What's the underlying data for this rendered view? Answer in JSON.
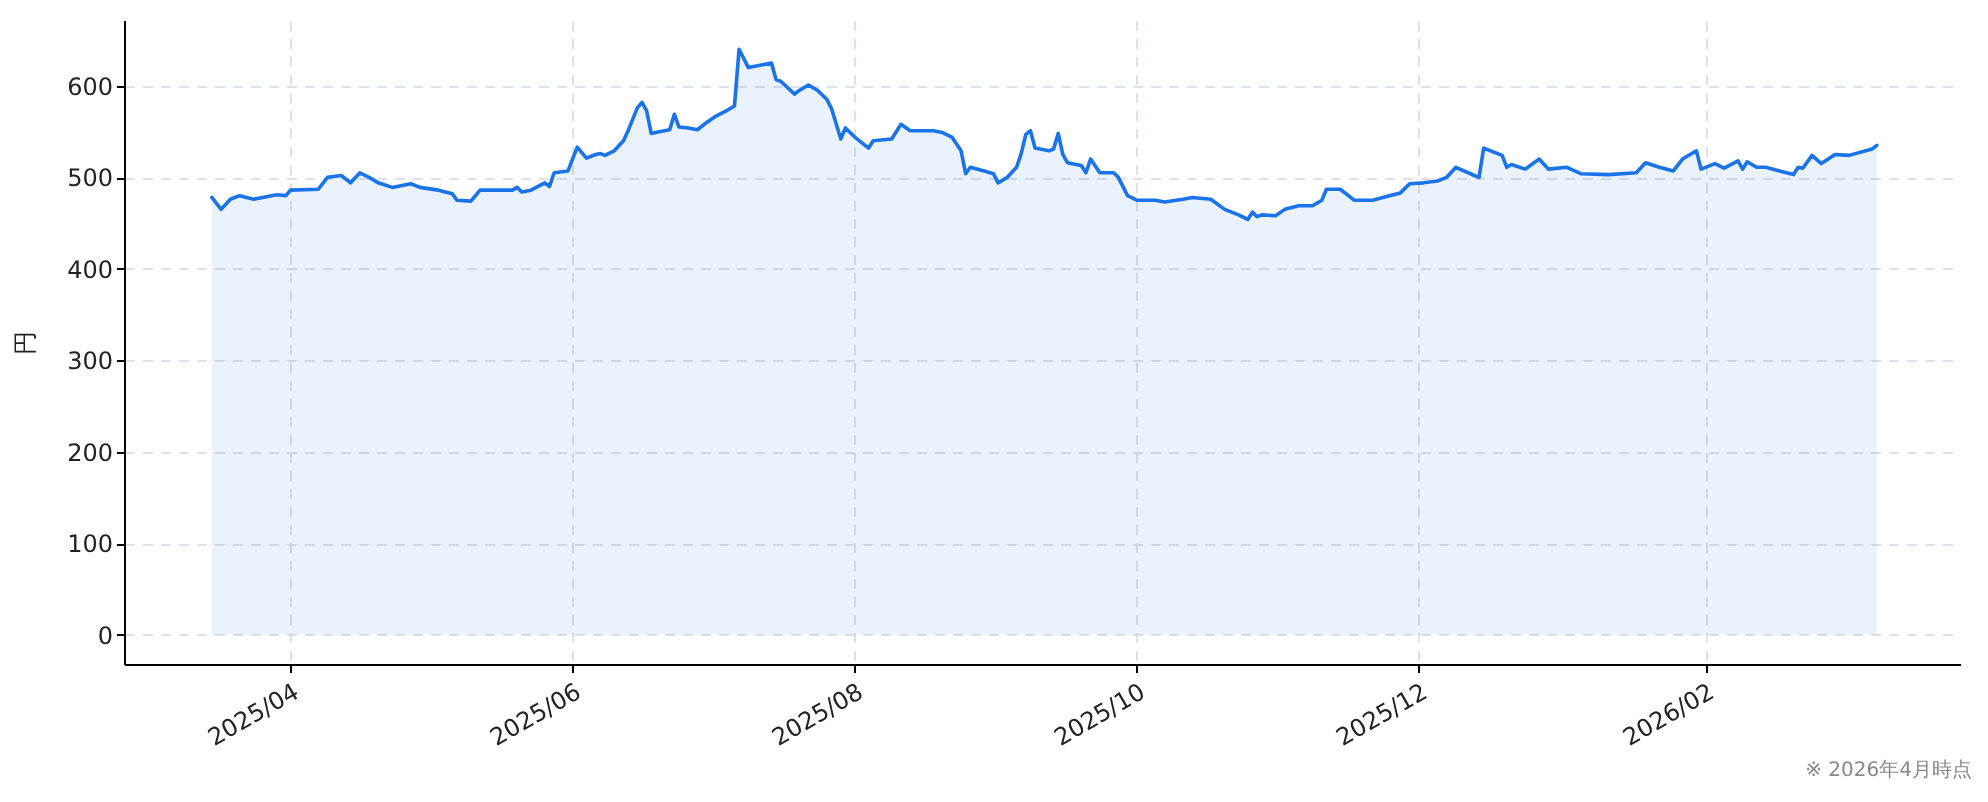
{
  "chart_data": {
    "type": "area",
    "ylabel": "円",
    "annotations": [
      "※ 2026年4月時点"
    ],
    "x": [
      "2025-03-15",
      "2025-03-17",
      "2025-03-19",
      "2025-03-21",
      "2025-03-24",
      "2025-03-26",
      "2025-03-29",
      "2025-03-31",
      "2025-04-01",
      "2025-04-07",
      "2025-04-09",
      "2025-04-12",
      "2025-04-14",
      "2025-04-16",
      "2025-04-18",
      "2025-04-20",
      "2025-04-23",
      "2025-04-27",
      "2025-04-29",
      "2025-05-03",
      "2025-05-06",
      "2025-05-07",
      "2025-05-10",
      "2025-05-12",
      "2025-05-19",
      "2025-05-20",
      "2025-05-21",
      "2025-05-23",
      "2025-05-26",
      "2025-05-27",
      "2025-05-28",
      "2025-05-31",
      "2025-06-02",
      "2025-06-04",
      "2025-06-06",
      "2025-06-07",
      "2025-06-08",
      "2025-06-10",
      "2025-06-12",
      "2025-06-13",
      "2025-06-15",
      "2025-06-16",
      "2025-06-17",
      "2025-06-18",
      "2025-06-20",
      "2025-06-22",
      "2025-06-23",
      "2025-06-24",
      "2025-06-26",
      "2025-06-28",
      "2025-06-30",
      "2025-07-02",
      "2025-07-04",
      "2025-07-06",
      "2025-07-07",
      "2025-07-09",
      "2025-07-11",
      "2025-07-14",
      "2025-07-15",
      "2025-07-16",
      "2025-07-19",
      "2025-07-20",
      "2025-07-22",
      "2025-07-24",
      "2025-07-26",
      "2025-07-27",
      "2025-07-29",
      "2025-07-30",
      "2025-08-01",
      "2025-08-04",
      "2025-08-05",
      "2025-08-09",
      "2025-08-11",
      "2025-08-13",
      "2025-08-18",
      "2025-08-20",
      "2025-08-22",
      "2025-08-24",
      "2025-08-25",
      "2025-08-26",
      "2025-08-29",
      "2025-08-31",
      "2025-09-01",
      "2025-09-03",
      "2025-09-05",
      "2025-09-06",
      "2025-09-07",
      "2025-09-08",
      "2025-09-09",
      "2025-09-12",
      "2025-09-13",
      "2025-09-14",
      "2025-09-15",
      "2025-09-16",
      "2025-09-19",
      "2025-09-20",
      "2025-09-21",
      "2025-09-23",
      "2025-09-26",
      "2025-09-27",
      "2025-09-29",
      "2025-10-01",
      "2025-10-05",
      "2025-10-07",
      "2025-10-11",
      "2025-10-13",
      "2025-10-17",
      "2025-10-20",
      "2025-10-23",
      "2025-10-25",
      "2025-10-26",
      "2025-10-27",
      "2025-10-28",
      "2025-10-31",
      "2025-11-02",
      "2025-11-05",
      "2025-11-08",
      "2025-11-10",
      "2025-11-11",
      "2025-11-14",
      "2025-11-17",
      "2025-11-21",
      "2025-11-24",
      "2025-11-27",
      "2025-11-29",
      "2025-12-02",
      "2025-12-05",
      "2025-12-07",
      "2025-12-09",
      "2025-12-13",
      "2025-12-14",
      "2025-12-15",
      "2025-12-19",
      "2025-12-20",
      "2025-12-21",
      "2025-12-24",
      "2025-12-27",
      "2025-12-29",
      "2026-01-02",
      "2026-01-05",
      "2026-01-11",
      "2026-01-17",
      "2026-01-19",
      "2026-01-22",
      "2026-01-25",
      "2026-01-27",
      "2026-01-30",
      "2026-01-31",
      "2026-02-03",
      "2026-02-05",
      "2026-02-08",
      "2026-02-09",
      "2026-02-10",
      "2026-02-12",
      "2026-02-14",
      "2026-02-17",
      "2026-02-20",
      "2026-02-21",
      "2026-02-22",
      "2026-02-24",
      "2026-02-26",
      "2026-03-01",
      "2026-03-04",
      "2026-03-09",
      "2026-03-10"
    ],
    "series": [
      {
        "color": "#1a73e8",
        "values": [
          478,
          465,
          476,
          480,
          476,
          478,
          481,
          480,
          486,
          487,
          500,
          502,
          494,
          505,
          500,
          494,
          489,
          493,
          489,
          486,
          482,
          475,
          474,
          486,
          486,
          489,
          484,
          486,
          494,
          490,
          505,
          507,
          533,
          521,
          525,
          526,
          524,
          529,
          540,
          551,
          576,
          582,
          573,
          548,
          550,
          552,
          569,
          555,
          554,
          552,
          560,
          567,
          572,
          578,
          640,
          620,
          622,
          625,
          607,
          605,
          591,
          595,
          601,
          595,
          585,
          575,
          542,
          554,
          544,
          532,
          540,
          542,
          558,
          551,
          551,
          549,
          544,
          529,
          504,
          511,
          507,
          504,
          494,
          500,
          511,
          526,
          547,
          551,
          532,
          529,
          531,
          548,
          525,
          516,
          513,
          505,
          520,
          505,
          505,
          500,
          480,
          475,
          475,
          473,
          476,
          478,
          476,
          465,
          459,
          454,
          462,
          457,
          459,
          458,
          465,
          469,
          469,
          475,
          487,
          487,
          475,
          475,
          479,
          483,
          493,
          494,
          496,
          500,
          511,
          502,
          500,
          532,
          524,
          511,
          514,
          509,
          520,
          509,
          511,
          504,
          503,
          505,
          516,
          511,
          507,
          520,
          529,
          509,
          515,
          510,
          518,
          509,
          517,
          511,
          511,
          507,
          503,
          511,
          510,
          524,
          515,
          525,
          524,
          531,
          535
        ]
      }
    ],
    "xlim": [
      "2025-02-24",
      "2026-03-28"
    ],
    "ylim": [
      -32,
      672
    ],
    "xticks": [
      {
        "value": "2025-04",
        "label": "2025/04"
      },
      {
        "value": "2025-06",
        "label": "2025/06"
      },
      {
        "value": "2025-08",
        "label": "2025/08"
      },
      {
        "value": "2025-10",
        "label": "2025/10"
      },
      {
        "value": "2025-12",
        "label": "2025/12"
      },
      {
        "value": "2026-02",
        "label": "2026/02"
      }
    ],
    "yticks": [
      0,
      100,
      200,
      300,
      400,
      500,
      600
    ],
    "grid": true
  }
}
